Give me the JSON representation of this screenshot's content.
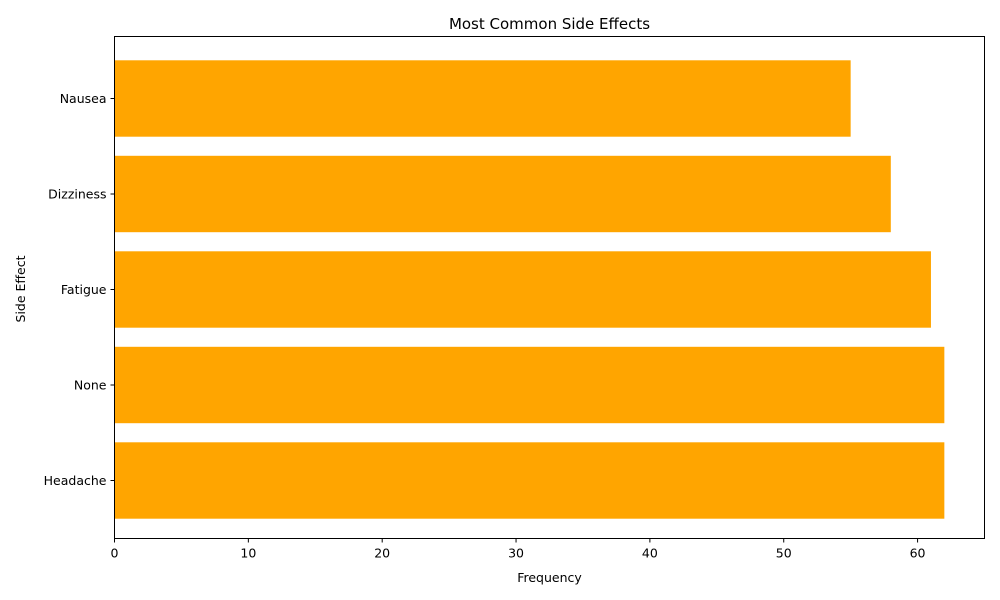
{
  "chart_data": {
    "type": "bar",
    "orientation": "horizontal",
    "title": "Most Common Side Effects",
    "xlabel": "Frequency",
    "ylabel": "Side Effect",
    "categories": [
      "Headache",
      "None",
      "Fatigue",
      "Dizziness",
      "Nausea"
    ],
    "values": [
      62,
      62,
      61,
      58,
      55
    ],
    "xlim": [
      0,
      65
    ],
    "xticks": [
      0,
      10,
      20,
      30,
      40,
      50,
      60
    ],
    "grid": false,
    "bar_color": "#FFA500"
  }
}
